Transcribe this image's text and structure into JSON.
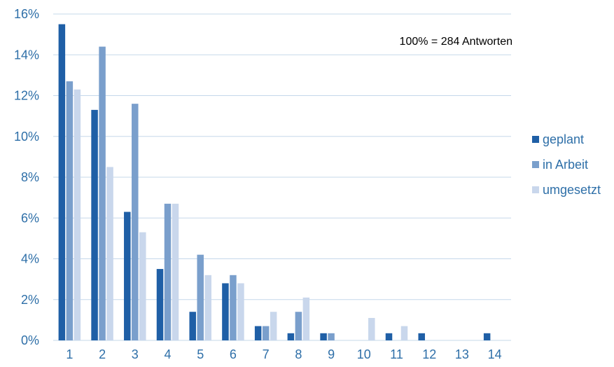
{
  "chart_data": {
    "type": "bar",
    "title": "",
    "xlabel": "",
    "ylabel": "",
    "categories": [
      "1",
      "2",
      "3",
      "4",
      "5",
      "6",
      "7",
      "8",
      "9",
      "10",
      "11",
      "12",
      "13",
      "14"
    ],
    "series": [
      {
        "name": "geplant",
        "color": "#1f5fa6",
        "values": [
          15.5,
          11.3,
          6.3,
          3.5,
          1.4,
          2.8,
          0.7,
          0.35,
          0.35,
          0,
          0.35,
          0.35,
          0,
          0.35
        ]
      },
      {
        "name": "in Arbeit",
        "color": "#7a9fcc",
        "values": [
          12.7,
          14.4,
          11.6,
          6.7,
          4.2,
          3.2,
          0.7,
          1.4,
          0.35,
          0,
          0,
          0,
          0,
          0
        ]
      },
      {
        "name": "umgesetzt",
        "color": "#c9d7ec",
        "values": [
          12.3,
          8.5,
          5.3,
          6.7,
          3.2,
          2.8,
          1.4,
          2.1,
          0,
          1.1,
          0.7,
          0,
          0,
          0
        ]
      }
    ],
    "ylim": [
      0,
      16
    ],
    "yticks": [
      0,
      2,
      4,
      6,
      8,
      10,
      12,
      14,
      16
    ],
    "ytick_suffix": "%",
    "grid": true,
    "legend_position": "right",
    "annotation": "100% = 284 Antworten"
  }
}
